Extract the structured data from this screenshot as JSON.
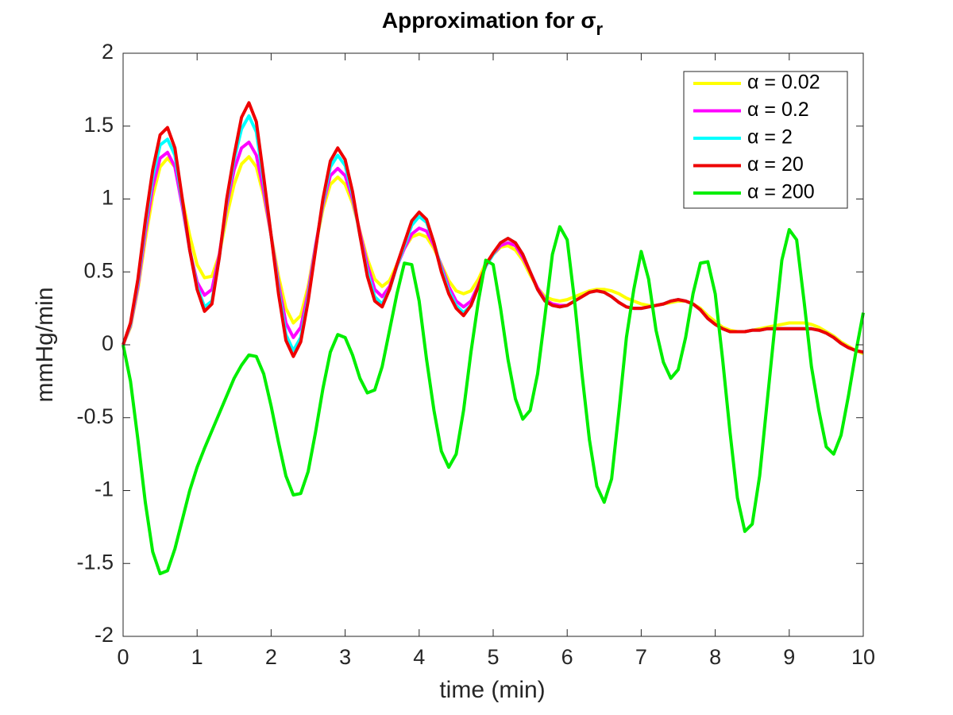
{
  "chart_data": {
    "type": "line",
    "title": "Approximation for σ",
    "title_subscript": "r",
    "xlabel": "time (min)",
    "ylabel": "mmHg/min",
    "xlim": [
      0,
      10
    ],
    "ylim": [
      -2,
      2
    ],
    "xticks": [
      0,
      1,
      2,
      3,
      4,
      5,
      6,
      7,
      8,
      9,
      10
    ],
    "yticks": [
      -2,
      -1.5,
      -1,
      -0.5,
      0,
      0.5,
      1,
      1.5,
      2
    ],
    "grid": false,
    "legend": "upper right",
    "x": [
      0,
      0.1,
      0.2,
      0.3,
      0.4,
      0.5,
      0.6,
      0.7,
      0.8,
      0.9,
      1,
      1.1,
      1.2,
      1.3,
      1.4,
      1.5,
      1.6,
      1.7,
      1.8,
      1.9,
      2,
      2.1,
      2.2,
      2.3,
      2.4,
      2.5,
      2.6,
      2.7,
      2.8,
      2.9,
      3,
      3.1,
      3.2,
      3.3,
      3.4,
      3.5,
      3.6,
      3.7,
      3.8,
      3.9,
      4,
      4.1,
      4.2,
      4.3,
      4.4,
      4.5,
      4.6,
      4.7,
      4.8,
      4.9,
      5,
      5.1,
      5.2,
      5.3,
      5.4,
      5.5,
      5.6,
      5.7,
      5.8,
      5.9,
      6,
      6.1,
      6.2,
      6.3,
      6.4,
      6.5,
      6.6,
      6.7,
      6.8,
      6.9,
      7,
      7.1,
      7.2,
      7.3,
      7.4,
      7.5,
      7.6,
      7.7,
      7.8,
      7.9,
      8,
      8.1,
      8.2,
      8.3,
      8.4,
      8.5,
      8.6,
      8.7,
      8.8,
      8.9,
      9,
      9.1,
      9.2,
      9.3,
      9.4,
      9.5,
      9.6,
      9.7,
      9.8,
      9.9,
      10
    ],
    "series": [
      {
        "name": "α = 0.02",
        "color": "#ffff00",
        "values": [
          0,
          0.12,
          0.38,
          0.72,
          1.02,
          1.22,
          1.28,
          1.22,
          1.0,
          0.75,
          0.55,
          0.46,
          0.47,
          0.62,
          0.88,
          1.1,
          1.24,
          1.29,
          1.22,
          1.02,
          0.75,
          0.47,
          0.25,
          0.15,
          0.2,
          0.4,
          0.68,
          0.93,
          1.1,
          1.15,
          1.1,
          0.97,
          0.78,
          0.59,
          0.45,
          0.4,
          0.44,
          0.55,
          0.66,
          0.74,
          0.76,
          0.74,
          0.66,
          0.55,
          0.44,
          0.37,
          0.35,
          0.37,
          0.45,
          0.56,
          0.62,
          0.67,
          0.68,
          0.65,
          0.58,
          0.48,
          0.39,
          0.33,
          0.31,
          0.3,
          0.31,
          0.33,
          0.35,
          0.37,
          0.38,
          0.38,
          0.37,
          0.35,
          0.32,
          0.3,
          0.28,
          0.27,
          0.27,
          0.28,
          0.29,
          0.3,
          0.3,
          0.28,
          0.25,
          0.2,
          0.16,
          0.12,
          0.1,
          0.09,
          0.09,
          0.1,
          0.11,
          0.12,
          0.13,
          0.14,
          0.15,
          0.15,
          0.15,
          0.14,
          0.12,
          0.09,
          0.06,
          0.02,
          -0.01,
          -0.04,
          -0.06
        ]
      },
      {
        "name": "α = 0.2",
        "color": "#ff00ff",
        "values": [
          0,
          0.13,
          0.4,
          0.77,
          1.08,
          1.28,
          1.32,
          1.22,
          0.95,
          0.65,
          0.43,
          0.34,
          0.38,
          0.62,
          0.95,
          1.2,
          1.35,
          1.39,
          1.3,
          1.05,
          0.75,
          0.42,
          0.15,
          0.05,
          0.12,
          0.36,
          0.68,
          0.96,
          1.16,
          1.21,
          1.16,
          1.0,
          0.77,
          0.55,
          0.38,
          0.33,
          0.4,
          0.54,
          0.66,
          0.76,
          0.8,
          0.78,
          0.68,
          0.54,
          0.4,
          0.3,
          0.26,
          0.3,
          0.41,
          0.54,
          0.62,
          0.68,
          0.7,
          0.68,
          0.6,
          0.5,
          0.39,
          0.31,
          0.28,
          0.27,
          0.27,
          0.3,
          0.33,
          0.36,
          0.37,
          0.36,
          0.33,
          0.29,
          0.26,
          0.25,
          0.25,
          0.26,
          0.27,
          0.28,
          0.3,
          0.31,
          0.3,
          0.28,
          0.24,
          0.18,
          0.14,
          0.11,
          0.09,
          0.09,
          0.09,
          0.1,
          0.1,
          0.11,
          0.11,
          0.11,
          0.11,
          0.11,
          0.11,
          0.11,
          0.1,
          0.08,
          0.05,
          0.01,
          -0.02,
          -0.04,
          -0.05
        ]
      },
      {
        "name": "α = 2",
        "color": "#00ffff",
        "values": [
          0,
          0.14,
          0.43,
          0.82,
          1.15,
          1.37,
          1.41,
          1.3,
          0.98,
          0.65,
          0.4,
          0.26,
          0.3,
          0.6,
          0.98,
          1.27,
          1.48,
          1.57,
          1.46,
          1.12,
          0.75,
          0.38,
          0.07,
          -0.04,
          0.05,
          0.32,
          0.66,
          0.98,
          1.22,
          1.3,
          1.23,
          1.03,
          0.75,
          0.5,
          0.33,
          0.28,
          0.38,
          0.54,
          0.68,
          0.82,
          0.88,
          0.84,
          0.7,
          0.52,
          0.37,
          0.27,
          0.22,
          0.27,
          0.4,
          0.54,
          0.62,
          0.7,
          0.73,
          0.7,
          0.62,
          0.5,
          0.38,
          0.3,
          0.27,
          0.26,
          0.27,
          0.3,
          0.33,
          0.36,
          0.37,
          0.36,
          0.33,
          0.29,
          0.26,
          0.25,
          0.25,
          0.26,
          0.27,
          0.28,
          0.3,
          0.31,
          0.3,
          0.28,
          0.24,
          0.18,
          0.14,
          0.11,
          0.09,
          0.09,
          0.09,
          0.1,
          0.1,
          0.11,
          0.11,
          0.11,
          0.11,
          0.11,
          0.11,
          0.11,
          0.1,
          0.08,
          0.05,
          0.01,
          -0.02,
          -0.04,
          -0.05
        ]
      },
      {
        "name": "α = 20",
        "color": "#ee0000",
        "values": [
          0,
          0.15,
          0.45,
          0.85,
          1.2,
          1.44,
          1.49,
          1.35,
          1.0,
          0.65,
          0.38,
          0.23,
          0.28,
          0.6,
          1.0,
          1.3,
          1.56,
          1.66,
          1.53,
          1.15,
          0.75,
          0.35,
          0.03,
          -0.08,
          0.02,
          0.3,
          0.65,
          1.0,
          1.26,
          1.35,
          1.27,
          1.05,
          0.75,
          0.47,
          0.3,
          0.26,
          0.38,
          0.55,
          0.7,
          0.85,
          0.91,
          0.86,
          0.7,
          0.5,
          0.35,
          0.25,
          0.2,
          0.27,
          0.4,
          0.55,
          0.63,
          0.7,
          0.73,
          0.7,
          0.62,
          0.5,
          0.38,
          0.3,
          0.27,
          0.26,
          0.27,
          0.3,
          0.33,
          0.36,
          0.37,
          0.36,
          0.33,
          0.29,
          0.26,
          0.25,
          0.25,
          0.26,
          0.27,
          0.28,
          0.3,
          0.31,
          0.3,
          0.28,
          0.24,
          0.18,
          0.14,
          0.11,
          0.09,
          0.09,
          0.09,
          0.1,
          0.1,
          0.11,
          0.11,
          0.11,
          0.11,
          0.11,
          0.11,
          0.11,
          0.1,
          0.08,
          0.05,
          0.01,
          -0.02,
          -0.04,
          -0.05
        ]
      },
      {
        "name": "α = 200",
        "color": "#00ee00",
        "values": [
          0,
          -0.25,
          -0.65,
          -1.08,
          -1.42,
          -1.57,
          -1.55,
          -1.4,
          -1.2,
          -1.0,
          -0.84,
          -0.71,
          -0.59,
          -0.47,
          -0.35,
          -0.23,
          -0.14,
          -0.07,
          -0.08,
          -0.2,
          -0.42,
          -0.67,
          -0.9,
          -1.03,
          -1.02,
          -0.87,
          -0.6,
          -0.3,
          -0.05,
          0.07,
          0.05,
          -0.07,
          -0.23,
          -0.33,
          -0.31,
          -0.15,
          0.1,
          0.35,
          0.56,
          0.55,
          0.3,
          -0.1,
          -0.45,
          -0.73,
          -0.84,
          -0.75,
          -0.45,
          -0.05,
          0.3,
          0.58,
          0.55,
          0.25,
          -0.1,
          -0.37,
          -0.51,
          -0.45,
          -0.2,
          0.2,
          0.62,
          0.81,
          0.72,
          0.3,
          -0.2,
          -0.65,
          -0.97,
          -1.08,
          -0.92,
          -0.45,
          0.05,
          0.38,
          0.64,
          0.45,
          0.1,
          -0.12,
          -0.23,
          -0.17,
          0.05,
          0.35,
          0.56,
          0.57,
          0.35,
          -0.1,
          -0.6,
          -1.05,
          -1.28,
          -1.23,
          -0.9,
          -0.4,
          0.1,
          0.58,
          0.79,
          0.72,
          0.3,
          -0.15,
          -0.45,
          -0.7,
          -0.75,
          -0.62,
          -0.35,
          -0.05,
          0.22
        ]
      }
    ]
  }
}
